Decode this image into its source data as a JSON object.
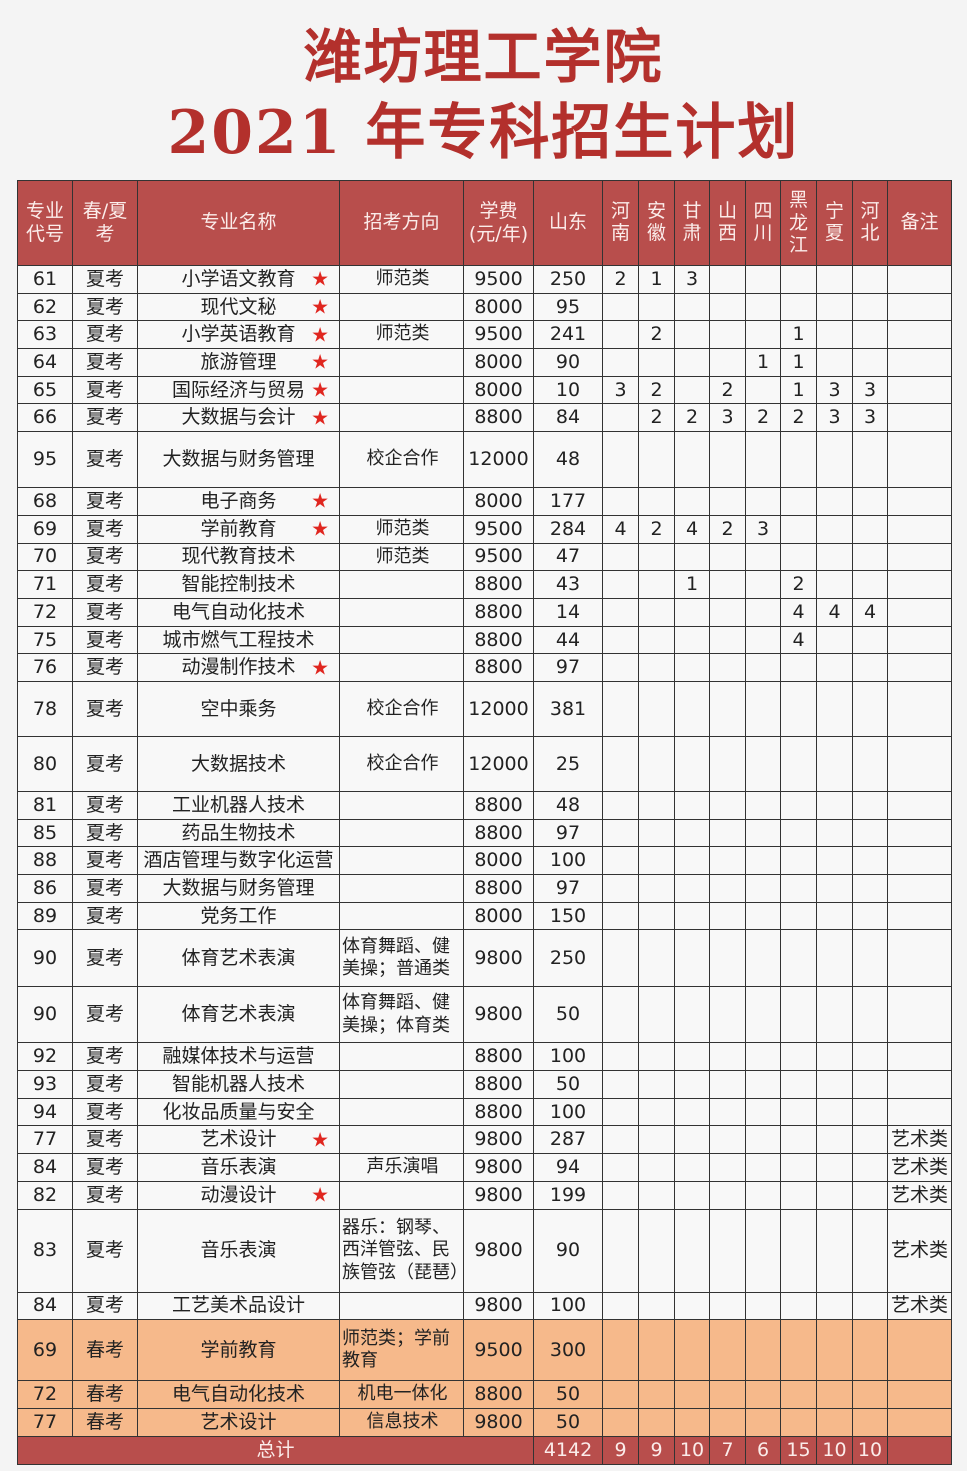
{
  "title": {
    "line1": "潍坊理工学院",
    "line2": "2021 年专科招生计划"
  },
  "colors": {
    "title": "#b3302c",
    "header_bg": "#b84e4c",
    "spring_bg": "#f6b98b",
    "star": "#e0261f"
  },
  "table": {
    "headers": [
      "专业代号",
      "春/夏考",
      "专业名称",
      "招考方向",
      "学费(元/年)",
      "山东",
      "河南",
      "安徽",
      "甘肃",
      "山西",
      "四川",
      "黑龙江",
      "宁夏",
      "河北",
      "备注"
    ],
    "header_lines": [
      [
        "专业",
        "代号"
      ],
      [
        "春/夏",
        "考"
      ],
      [
        "专业名称"
      ],
      [
        "招考方向"
      ],
      [
        "学费",
        "(元/年)"
      ],
      [
        "山东"
      ],
      [
        "河",
        "南"
      ],
      [
        "安",
        "徽"
      ],
      [
        "甘",
        "肃"
      ],
      [
        "山",
        "西"
      ],
      [
        "四",
        "川"
      ],
      [
        "黑",
        "龙",
        "江"
      ],
      [
        "宁",
        "夏"
      ],
      [
        "河",
        "北"
      ],
      [
        "备注"
      ]
    ],
    "star_icon": "★",
    "rows": [
      {
        "code": "61",
        "type": "夏考",
        "name": "小学语文教育",
        "star": true,
        "direction": "师范类",
        "fee": "9500",
        "shandong": "250",
        "prov": [
          "2",
          "1",
          "3",
          "",
          "",
          "",
          "",
          ""
        ],
        "note": ""
      },
      {
        "code": "62",
        "type": "夏考",
        "name": "现代文秘",
        "star": true,
        "direction": "",
        "fee": "8000",
        "shandong": "95",
        "prov": [
          "",
          "",
          "",
          "",
          "",
          "",
          "",
          ""
        ],
        "note": ""
      },
      {
        "code": "63",
        "type": "夏考",
        "name": "小学英语教育",
        "star": true,
        "direction": "师范类",
        "fee": "9500",
        "shandong": "241",
        "prov": [
          "",
          "2",
          "",
          "",
          "",
          "1",
          "",
          ""
        ],
        "note": ""
      },
      {
        "code": "64",
        "type": "夏考",
        "name": "旅游管理",
        "star": true,
        "direction": "",
        "fee": "8000",
        "shandong": "90",
        "prov": [
          "",
          "",
          "",
          "",
          "1",
          "1",
          "",
          ""
        ],
        "note": ""
      },
      {
        "code": "65",
        "type": "夏考",
        "name": "国际经济与贸易",
        "star": true,
        "direction": "",
        "fee": "8000",
        "shandong": "10",
        "prov": [
          "3",
          "2",
          "",
          "2",
          "",
          "1",
          "3",
          "3"
        ],
        "note": ""
      },
      {
        "code": "66",
        "type": "夏考",
        "name": "大数据与会计",
        "star": true,
        "direction": "",
        "fee": "8800",
        "shandong": "84",
        "prov": [
          "",
          "2",
          "2",
          "3",
          "2",
          "2",
          "3",
          "3"
        ],
        "note": ""
      },
      {
        "code": "95",
        "type": "夏考",
        "name": "大数据与财务管理",
        "star": false,
        "direction": "校企合作",
        "fee": "12000",
        "shandong": "48",
        "prov": [
          "",
          "",
          "",
          "",
          "",
          "",
          "",
          ""
        ],
        "note": "",
        "tall": 56
      },
      {
        "code": "68",
        "type": "夏考",
        "name": "电子商务",
        "star": true,
        "direction": "",
        "fee": "8000",
        "shandong": "177",
        "prov": [
          "",
          "",
          "",
          "",
          "",
          "",
          "",
          ""
        ],
        "note": ""
      },
      {
        "code": "69",
        "type": "夏考",
        "name": "学前教育",
        "star": true,
        "direction": "师范类",
        "fee": "9500",
        "shandong": "284",
        "prov": [
          "4",
          "2",
          "4",
          "2",
          "3",
          "",
          "",
          ""
        ],
        "note": ""
      },
      {
        "code": "70",
        "type": "夏考",
        "name": "现代教育技术",
        "star": false,
        "direction": "师范类",
        "fee": "9500",
        "shandong": "47",
        "prov": [
          "",
          "",
          "",
          "",
          "",
          "",
          "",
          ""
        ],
        "note": ""
      },
      {
        "code": "71",
        "type": "夏考",
        "name": "智能控制技术",
        "star": false,
        "direction": "",
        "fee": "8800",
        "shandong": "43",
        "prov": [
          "",
          "",
          "1",
          "",
          "",
          "2",
          "",
          ""
        ],
        "note": ""
      },
      {
        "code": "72",
        "type": "夏考",
        "name": "电气自动化技术",
        "star": false,
        "direction": "",
        "fee": "8800",
        "shandong": "14",
        "prov": [
          "",
          "",
          "",
          "",
          "",
          "4",
          "4",
          "4"
        ],
        "note": ""
      },
      {
        "code": "75",
        "type": "夏考",
        "name": "城市燃气工程技术",
        "star": false,
        "direction": "",
        "fee": "8800",
        "shandong": "44",
        "prov": [
          "",
          "",
          "",
          "",
          "",
          "4",
          "",
          ""
        ],
        "note": ""
      },
      {
        "code": "76",
        "type": "夏考",
        "name": "动漫制作技术",
        "star": true,
        "direction": "",
        "fee": "8800",
        "shandong": "97",
        "prov": [
          "",
          "",
          "",
          "",
          "",
          "",
          "",
          ""
        ],
        "note": ""
      },
      {
        "code": "78",
        "type": "夏考",
        "name": "空中乘务",
        "star": false,
        "direction": "校企合作",
        "fee": "12000",
        "shandong": "381",
        "prov": [
          "",
          "",
          "",
          "",
          "",
          "",
          "",
          ""
        ],
        "note": "",
        "tall": 55
      },
      {
        "code": "80",
        "type": "夏考",
        "name": "大数据技术",
        "star": false,
        "direction": "校企合作",
        "fee": "12000",
        "shandong": "25",
        "prov": [
          "",
          "",
          "",
          "",
          "",
          "",
          "",
          ""
        ],
        "note": "",
        "tall": 55
      },
      {
        "code": "81",
        "type": "夏考",
        "name": "工业机器人技术",
        "star": false,
        "direction": "",
        "fee": "8800",
        "shandong": "48",
        "prov": [
          "",
          "",
          "",
          "",
          "",
          "",
          "",
          ""
        ],
        "note": ""
      },
      {
        "code": "85",
        "type": "夏考",
        "name": "药品生物技术",
        "star": false,
        "direction": "",
        "fee": "8800",
        "shandong": "97",
        "prov": [
          "",
          "",
          "",
          "",
          "",
          "",
          "",
          ""
        ],
        "note": ""
      },
      {
        "code": "88",
        "type": "夏考",
        "name": "酒店管理与数字化运营",
        "star": false,
        "direction": "",
        "fee": "8000",
        "shandong": "100",
        "prov": [
          "",
          "",
          "",
          "",
          "",
          "",
          "",
          ""
        ],
        "note": ""
      },
      {
        "code": "86",
        "type": "夏考",
        "name": "大数据与财务管理",
        "star": false,
        "direction": "",
        "fee": "8800",
        "shandong": "97",
        "prov": [
          "",
          "",
          "",
          "",
          "",
          "",
          "",
          ""
        ],
        "note": ""
      },
      {
        "code": "89",
        "type": "夏考",
        "name": "党务工作",
        "star": false,
        "direction": "",
        "fee": "8000",
        "shandong": "150",
        "prov": [
          "",
          "",
          "",
          "",
          "",
          "",
          "",
          ""
        ],
        "note": ""
      },
      {
        "code": "90",
        "type": "夏考",
        "name": "体育艺术表演",
        "star": false,
        "direction": "体育舞蹈、健美操；普通类",
        "fee": "9800",
        "shandong": "250",
        "prov": [
          "",
          "",
          "",
          "",
          "",
          "",
          "",
          ""
        ],
        "note": "",
        "tall": 57
      },
      {
        "code": "90",
        "type": "夏考",
        "name": "体育艺术表演",
        "star": false,
        "direction": "体育舞蹈、健美操；体育类",
        "fee": "9800",
        "shandong": "50",
        "prov": [
          "",
          "",
          "",
          "",
          "",
          "",
          "",
          ""
        ],
        "note": "",
        "tall": 56
      },
      {
        "code": "92",
        "type": "夏考",
        "name": "融媒体技术与运营",
        "star": false,
        "direction": "",
        "fee": "8800",
        "shandong": "100",
        "prov": [
          "",
          "",
          "",
          "",
          "",
          "",
          "",
          ""
        ],
        "note": ""
      },
      {
        "code": "93",
        "type": "夏考",
        "name": "智能机器人技术",
        "star": false,
        "direction": "",
        "fee": "8800",
        "shandong": "50",
        "prov": [
          "",
          "",
          "",
          "",
          "",
          "",
          "",
          ""
        ],
        "note": ""
      },
      {
        "code": "94",
        "type": "夏考",
        "name": "化妆品质量与安全",
        "star": false,
        "direction": "",
        "fee": "8800",
        "shandong": "100",
        "prov": [
          "",
          "",
          "",
          "",
          "",
          "",
          "",
          ""
        ],
        "note": ""
      },
      {
        "code": "77",
        "type": "夏考",
        "name": "艺术设计",
        "star": true,
        "direction": "",
        "fee": "9800",
        "shandong": "287",
        "prov": [
          "",
          "",
          "",
          "",
          "",
          "",
          "",
          ""
        ],
        "note": "艺术类"
      },
      {
        "code": "84",
        "type": "夏考",
        "name": "音乐表演",
        "star": false,
        "direction": "声乐演唱",
        "fee": "9800",
        "shandong": "94",
        "prov": [
          "",
          "",
          "",
          "",
          "",
          "",
          "",
          ""
        ],
        "note": "艺术类"
      },
      {
        "code": "82",
        "type": "夏考",
        "name": "动漫设计",
        "star": true,
        "direction": "",
        "fee": "9800",
        "shandong": "199",
        "prov": [
          "",
          "",
          "",
          "",
          "",
          "",
          "",
          ""
        ],
        "note": "艺术类"
      },
      {
        "code": "83",
        "type": "夏考",
        "name": "音乐表演",
        "star": false,
        "direction": "器乐：钢琴、西洋管弦、民族管弦（琵琶）",
        "fee": "9800",
        "shandong": "90",
        "prov": [
          "",
          "",
          "",
          "",
          "",
          "",
          "",
          ""
        ],
        "note": "艺术类",
        "tall": 83
      },
      {
        "code": "84",
        "type": "夏考",
        "name": "工艺美术品设计",
        "star": false,
        "direction": "",
        "fee": "9800",
        "shandong": "100",
        "prov": [
          "",
          "",
          "",
          "",
          "",
          "",
          "",
          ""
        ],
        "note": "艺术类"
      },
      {
        "code": "69",
        "type": "春考",
        "name": "学前教育",
        "star": false,
        "direction": "师范类；学前教育",
        "fee": "9500",
        "shandong": "300",
        "prov": [
          "",
          "",
          "",
          "",
          "",
          "",
          "",
          ""
        ],
        "note": "",
        "tall": 61,
        "spring": true
      },
      {
        "code": "72",
        "type": "春考",
        "name": "电气自动化技术",
        "star": false,
        "direction": "机电一体化",
        "fee": "8800",
        "shandong": "50",
        "prov": [
          "",
          "",
          "",
          "",
          "",
          "",
          "",
          ""
        ],
        "note": "",
        "spring": true
      },
      {
        "code": "77",
        "type": "春考",
        "name": "艺术设计",
        "star": false,
        "direction": "信息技术",
        "fee": "9800",
        "shandong": "50",
        "prov": [
          "",
          "",
          "",
          "",
          "",
          "",
          "",
          ""
        ],
        "note": "",
        "spring": true
      }
    ],
    "total": {
      "label": "总计",
      "shandong": "4142",
      "prov": [
        "9",
        "9",
        "10",
        "7",
        "6",
        "15",
        "10",
        "10"
      ]
    }
  }
}
